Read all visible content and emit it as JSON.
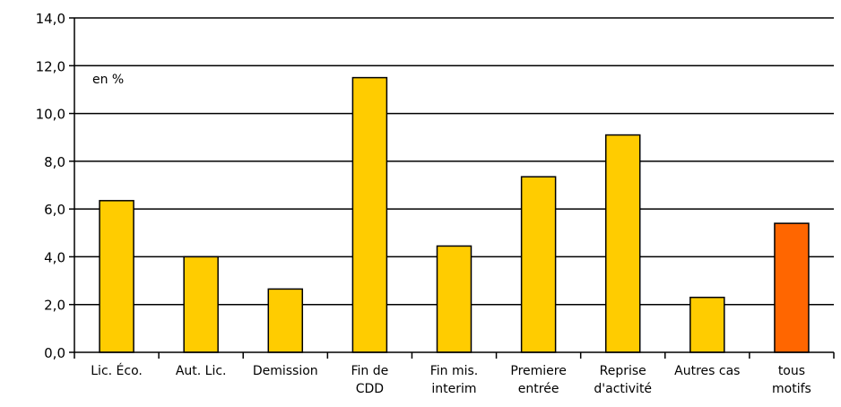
{
  "chart_data": {
    "type": "bar",
    "unit_note": "en %",
    "categories": [
      [
        "Lic. Éco."
      ],
      [
        "Aut. Lic."
      ],
      [
        "Demission"
      ],
      [
        "Fin de",
        "CDD"
      ],
      [
        "Fin mis.",
        "interim"
      ],
      [
        "Premiere",
        "entrée"
      ],
      [
        "Reprise",
        "d'activité"
      ],
      [
        "Autres cas"
      ],
      [
        "tous",
        "motifs"
      ]
    ],
    "values": [
      6.35,
      4.0,
      2.65,
      11.5,
      4.45,
      7.35,
      9.1,
      2.3,
      5.4
    ],
    "highlight_index": 8,
    "ylim": [
      0,
      14
    ],
    "yticks": [
      "0,0",
      "2,0",
      "4,0",
      "6,0",
      "8,0",
      "10,0",
      "12,0",
      "14,0"
    ],
    "grid": true,
    "colors": {
      "bar": "#FFCC00",
      "highlight": "#FF6600",
      "bar_border": "#000000",
      "grid": "#000000"
    }
  }
}
